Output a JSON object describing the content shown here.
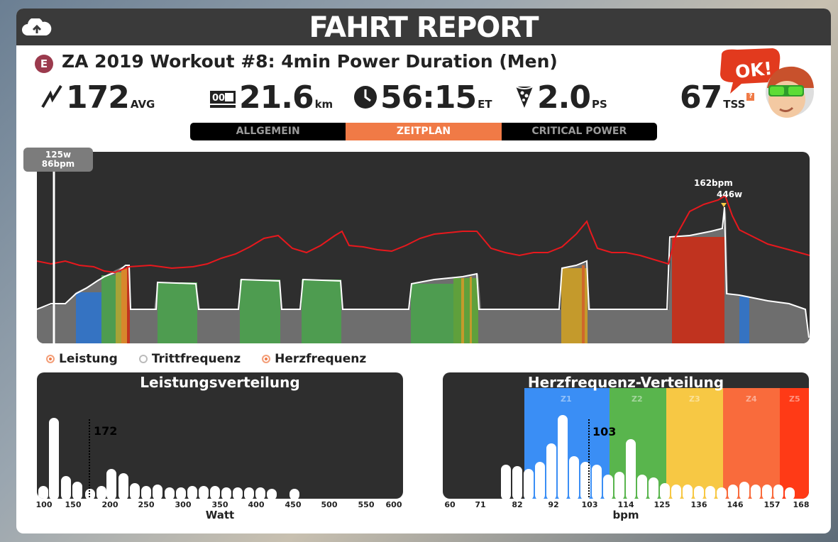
{
  "header": {
    "title": "FAHRT REPORT",
    "upload_icon": "cloud-upload-icon"
  },
  "workout": {
    "badge": "E",
    "title": "ZA 2019 Workout #8: 4min Power Duration (Men)"
  },
  "stats": {
    "power": {
      "value": "172",
      "unit": "AVG",
      "icon": "power-bolt-icon"
    },
    "distance": {
      "value": "21.6",
      "unit": "km",
      "icon": "odometer-icon"
    },
    "time": {
      "value": "56:15",
      "unit": "ET",
      "icon": "clock-icon"
    },
    "pizza": {
      "value": "2.0",
      "unit": "PS",
      "icon": "pizza-icon"
    },
    "tss": {
      "value": "67",
      "unit": "TSS",
      "help": "?"
    }
  },
  "avatar": {
    "bubble": "OK!"
  },
  "tabs": [
    {
      "label": "ALLGEMEIN",
      "active": false
    },
    {
      "label": "ZEITPLAN",
      "active": true
    },
    {
      "label": "CRITICAL POWER",
      "active": false
    }
  ],
  "timeline": {
    "cursor_readout": {
      "power": "125w",
      "hr": "86bpm"
    },
    "peak_hr_label": "162bpm",
    "peak_power_label": "446w"
  },
  "legend": [
    {
      "label": "Leistung",
      "checked": true
    },
    {
      "label": "Trittfrequenz",
      "checked": false
    },
    {
      "label": "Herzfrequenz",
      "checked": true
    }
  ],
  "power_distribution": {
    "title": "Leistungsverteilung",
    "avg_label": "172",
    "x_ticks": [
      "100",
      "150",
      "200",
      "250",
      "300",
      "350",
      "400",
      "450",
      "500",
      "550",
      "600"
    ],
    "x_label": "Watt"
  },
  "hr_distribution": {
    "title": "Herzfrequenz-Verteilung",
    "avg_label": "103",
    "zones": [
      "Z1",
      "Z2",
      "Z3",
      "Z4",
      "Z5"
    ],
    "zone_colors": [
      "#3a8ef5",
      "#59b54d",
      "#f7c844",
      "#f96b3c",
      "#ff3a16"
    ],
    "x_ticks": [
      "60",
      "71",
      "82",
      "92",
      "103",
      "114",
      "125",
      "136",
      "146",
      "157",
      "168"
    ],
    "x_label": "bpm"
  },
  "colors": {
    "accent": "#f07a46",
    "hr_line": "#e8181d",
    "zone_blue": "#3573c2",
    "zone_green": "#4e9c50",
    "zone_yellow": "#c49a2c",
    "zone_red": "#c0331f"
  }
}
